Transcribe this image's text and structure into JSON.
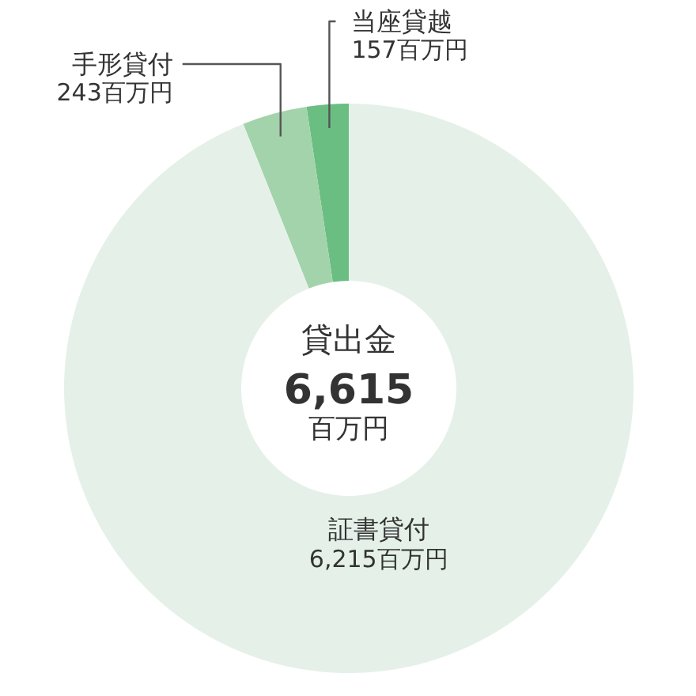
{
  "chart_data": {
    "type": "donut",
    "title": "貸出金",
    "categories": [
      "当座貸越",
      "手形貸付",
      "証書貸付"
    ],
    "values": [
      157,
      243,
      6215
    ],
    "value_labels": [
      "157百万円",
      "243百万円",
      "6,215百万円"
    ],
    "colors": [
      "#6bbe82",
      "#a3d3aa",
      "#e5f1e8"
    ],
    "annotations": [
      "6,615",
      "百万円"
    ]
  }
}
